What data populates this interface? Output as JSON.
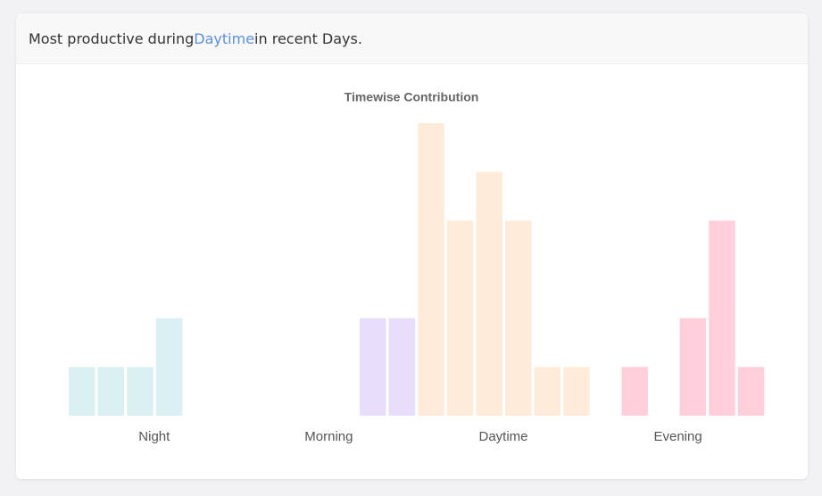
{
  "header": {
    "prefix": "Most productive during",
    "highlight": "Daytime",
    "suffix": "in recent Days."
  },
  "chart_data": {
    "type": "bar",
    "title": "Timewise Contribution",
    "ylim": [
      0,
      6
    ],
    "series": [
      {
        "name": "Night",
        "color": "#daf0f2",
        "values": [
          1,
          1,
          1,
          2,
          0,
          0
        ]
      },
      {
        "name": "Morning",
        "color": "#e7defb",
        "values": [
          0,
          0,
          0,
          0,
          2,
          2
        ]
      },
      {
        "name": "Daytime",
        "color": "#ffebd9",
        "values": [
          6,
          4,
          5,
          4,
          1,
          1
        ]
      },
      {
        "name": "Evening",
        "color": "#ffd0dc",
        "values": [
          0,
          1,
          0,
          2,
          4,
          1
        ]
      }
    ]
  }
}
